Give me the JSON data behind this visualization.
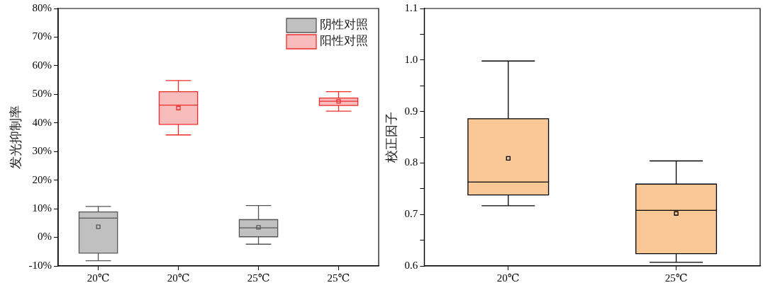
{
  "chart_data": [
    {
      "type": "box",
      "ylabel": "发光抑制率",
      "categories": [
        "20℃",
        "20℃",
        "25℃",
        "25℃"
      ],
      "ylim": [
        -10,
        80
      ],
      "yticks": [
        {
          "value": -10,
          "label": "-10%"
        },
        {
          "value": 0,
          "label": "0%"
        },
        {
          "value": 10,
          "label": "10%"
        },
        {
          "value": 20,
          "label": "20%"
        },
        {
          "value": 30,
          "label": "30%"
        },
        {
          "value": 40,
          "label": "40%"
        },
        {
          "value": 50,
          "label": "50%"
        },
        {
          "value": 60,
          "label": "60%"
        },
        {
          "value": 70,
          "label": "70%"
        },
        {
          "value": 80,
          "label": "80%"
        }
      ],
      "series": [
        {
          "name": "阴性对照",
          "color": "#c0c0c0",
          "boxes": [
            {
              "low": -8.2,
              "q1": -5.5,
              "median": 6.7,
              "q3": 8.9,
              "high": 10.8,
              "mean": 3.7
            },
            null,
            {
              "low": -2.4,
              "q1": 0.2,
              "median": 3.3,
              "q3": 6.2,
              "high": 11.1,
              "mean": 3.5
            },
            null
          ]
        },
        {
          "name": "阳性对照",
          "color": "#f9bcbc",
          "boxes": [
            null,
            {
              "low": 35.8,
              "q1": 39.5,
              "median": 46.2,
              "q3": 50.9,
              "high": 54.8,
              "mean": 45.2
            },
            null,
            {
              "low": 44.1,
              "q1": 46.1,
              "median": 47.6,
              "q3": 48.7,
              "high": 50.9,
              "mean": 47.5
            }
          ]
        }
      ],
      "legend": "top right",
      "grid": false
    },
    {
      "type": "box",
      "ylabel": "校正因子",
      "categories": [
        "20℃",
        "25℃"
      ],
      "ylim": [
        0.6,
        1.1
      ],
      "yticks": [
        0.6,
        {
          "value": 0.65,
          "label": null
        },
        0.7,
        {
          "value": 0.75,
          "label": null
        },
        0.8,
        {
          "value": 0.85,
          "label": null
        },
        0.9,
        {
          "value": 0.95,
          "label": null
        },
        {
          "value": 1.0,
          "label": "1.0"
        },
        {
          "value": 1.05,
          "label": null
        },
        1.1
      ],
      "series": [
        {
          "color": "#f9c896",
          "boxes": [
            {
              "low": 0.717,
              "q1": 0.738,
              "median": 0.763,
              "q3": 0.886,
              "high": 0.998,
              "mean": 0.809
            },
            {
              "low": 0.607,
              "q1": 0.624,
              "median": 0.708,
              "q3": 0.759,
              "high": 0.804,
              "mean": 0.702
            }
          ]
        }
      ],
      "legend": false,
      "grid": false
    }
  ]
}
